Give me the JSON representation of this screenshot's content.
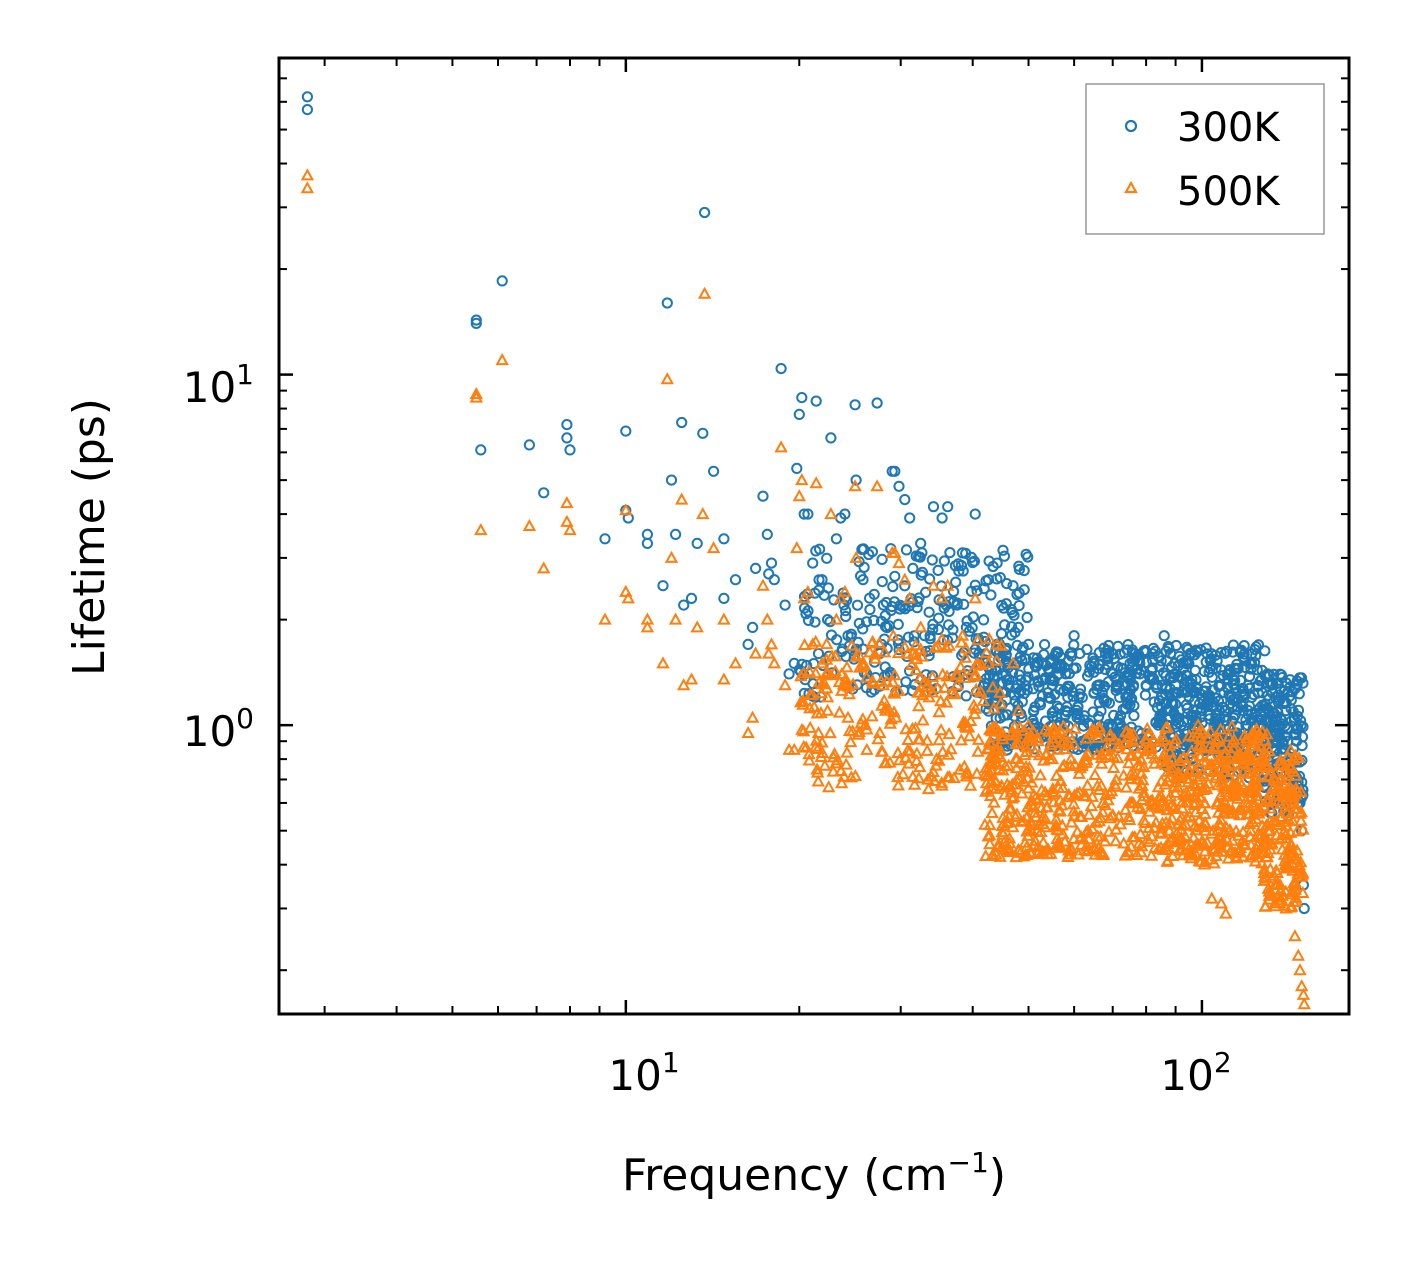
{
  "chart_data": {
    "type": "scatter",
    "title": "",
    "xlabel": "Frequency (cm",
    "xlabel_sup": "−1",
    "xlabel_close": ")",
    "ylabel": "Lifetime (ps)",
    "xscale": "log",
    "yscale": "log",
    "xlim": [
      2.5,
      180
    ],
    "ylim": [
      0.15,
      80
    ],
    "x_ticks": [
      {
        "base": "10",
        "exp": "1",
        "value": 10
      },
      {
        "base": "10",
        "exp": "2",
        "value": 100
      }
    ],
    "y_ticks": [
      {
        "base": "10",
        "exp": "0",
        "value": 1
      },
      {
        "base": "10",
        "exp": "1",
        "value": 10
      }
    ],
    "legend_position": "top-right",
    "series": [
      {
        "name": "300K",
        "marker": "circle",
        "color": "#1f77b4",
        "x": [
          2.8,
          2.8,
          5.5,
          5.5,
          5.6,
          6.1,
          6.8,
          7.2,
          7.9,
          7.9,
          8.0,
          9.2,
          10.0,
          10.0,
          10.1,
          10.9,
          10.9,
          11.6,
          11.8,
          12.0,
          12.2,
          12.5,
          12.6,
          13.0,
          13.3,
          13.6,
          13.7,
          14.2,
          14.8,
          14.8,
          15.5,
          16.3,
          16.6,
          16.8,
          17.3,
          17.6,
          17.7,
          17.9,
          18.1,
          18.6,
          18.9,
          19.2,
          19.6,
          19.8,
          20.0,
          20.2,
          20.4,
          20.7,
          21.1,
          21.4,
          21.6,
          21.9,
          22.4,
          22.7,
          23.2,
          23.6,
          24.0,
          24.3,
          25.0,
          25.1,
          25.8,
          26.2,
          27.3,
          27.6,
          28.0,
          29.0,
          29.3,
          29.8,
          30.5,
          31.1,
          31.5,
          32.5,
          33.6,
          34.2,
          35.4,
          36.2,
          37.6,
          38.4,
          40.4,
          42.6,
          44.1,
          47.0,
          48.0,
          50.0,
          52.0,
          55.0,
          56.0,
          58.0,
          60.0,
          62.0,
          65.0,
          66.0,
          68.0,
          70.0,
          72.0,
          75.0,
          78.0,
          80.0,
          82.0,
          85.0,
          86.0,
          88.0,
          90.0,
          92.0,
          95.0,
          98.0,
          100.0,
          103.0,
          105.0,
          108.0,
          110.0,
          112.0,
          115.0,
          118.0,
          120.0,
          122.0,
          125.0,
          128.0,
          130.0,
          132.0,
          134.0,
          136.0,
          138.0,
          140.0,
          142.0,
          144.0,
          146.0,
          148.0,
          33.0,
          36.0,
          39.0,
          41.0,
          45.0,
          58.0,
          64.0,
          72.0,
          84.0,
          96.0,
          106.0,
          118.0,
          128.0,
          135.0,
          141.0,
          145.0,
          147.0,
          149.0,
          150.0,
          150.5
        ],
        "y": [
          62.0,
          57.0,
          14.3,
          14.0,
          6.1,
          18.5,
          6.3,
          4.6,
          7.2,
          6.6,
          6.1,
          3.4,
          6.9,
          4.1,
          3.9,
          3.5,
          3.3,
          2.5,
          16.0,
          5.0,
          3.5,
          7.3,
          2.2,
          2.3,
          3.3,
          6.8,
          29.0,
          5.3,
          2.3,
          3.4,
          2.6,
          1.7,
          1.9,
          2.8,
          4.5,
          3.5,
          2.7,
          2.9,
          2.6,
          10.4,
          2.2,
          1.4,
          1.5,
          5.4,
          7.7,
          8.6,
          4.0,
          4.0,
          2.9,
          8.4,
          1.6,
          2.6,
          2.0,
          6.6,
          3.4,
          3.9,
          4.0,
          1.8,
          8.2,
          5.0,
          2.6,
          1.4,
          8.3,
          1.6,
          2.2,
          5.3,
          5.3,
          4.8,
          4.4,
          3.9,
          2.8,
          3.3,
          2.1,
          4.2,
          3.9,
          4.2,
          2.2,
          3.1,
          4.0,
          2.6,
          2.9,
          2.5,
          1.9,
          1.7,
          1.5,
          1.3,
          1.6,
          1.4,
          1.8,
          1.2,
          1.5,
          1.3,
          1.6,
          1.4,
          1.2,
          1.5,
          1.4,
          1.3,
          1.6,
          1.2,
          1.8,
          1.1,
          1.3,
          1.0,
          1.2,
          0.9,
          1.1,
          1.2,
          1.0,
          1.3,
          1.1,
          1.2,
          0.95,
          1.1,
          1.0,
          1.2,
          1.3,
          1.1,
          1.4,
          1.3,
          1.2,
          1.0,
          0.9,
          1.1,
          0.8,
          0.7,
          0.9,
          0.6,
          1.8,
          2.2,
          1.9,
          1.6,
          1.4,
          1.1,
          1.0,
          0.9,
          1.0,
          0.8,
          0.85,
          0.9,
          0.95,
          1.1,
          0.9,
          0.8,
          0.6,
          0.5,
          0.35,
          0.3
        ],
        "cloud": [
          {
            "from": 20,
            "to": 50,
            "lo": 1.2,
            "hi": 3.2,
            "n": 260,
            "seed": 11
          },
          {
            "from": 42,
            "to": 130,
            "lo": 0.85,
            "hi": 1.7,
            "n": 650,
            "seed": 23
          },
          {
            "from": 85,
            "to": 128,
            "lo": 0.7,
            "hi": 1.3,
            "n": 160,
            "seed": 31
          },
          {
            "from": 128,
            "to": 150,
            "lo": 0.55,
            "hi": 1.4,
            "n": 170,
            "seed": 41
          }
        ]
      },
      {
        "name": "500K",
        "marker": "triangle",
        "color": "#ff7f0e",
        "x": [
          2.8,
          2.8,
          5.5,
          5.5,
          5.6,
          6.1,
          6.8,
          7.2,
          7.9,
          7.9,
          8.0,
          9.2,
          10.0,
          10.0,
          10.1,
          10.9,
          10.9,
          11.6,
          11.8,
          12.0,
          12.2,
          12.5,
          12.6,
          13.0,
          13.3,
          13.6,
          13.7,
          14.2,
          14.8,
          14.8,
          15.5,
          16.3,
          16.6,
          16.8,
          17.3,
          17.6,
          17.7,
          17.9,
          18.1,
          18.6,
          18.9,
          19.2,
          19.6,
          19.8,
          20.0,
          20.2,
          20.4,
          20.7,
          21.1,
          21.4,
          21.6,
          21.9,
          22.4,
          22.7,
          23.2,
          23.6,
          24.0,
          24.3,
          25.0,
          25.1,
          25.8,
          26.2,
          27.3,
          27.6,
          28.0,
          29.0,
          29.3,
          29.8,
          30.5,
          31.1,
          31.5,
          32.5,
          33.6,
          34.2,
          35.4,
          36.2,
          37.6,
          38.4,
          40.4,
          42.6,
          44.1,
          47.0,
          48.0,
          50.0,
          52.0,
          55.0,
          104.0,
          108.0,
          110.0,
          45.0,
          60.0,
          75.0,
          92.0,
          120.0,
          140.0,
          145.0,
          147.0,
          148.0,
          149.0,
          150.0,
          150.5
        ],
        "y": [
          37.0,
          34.0,
          8.8,
          8.6,
          3.6,
          11.0,
          3.7,
          2.8,
          4.3,
          3.8,
          3.6,
          2.0,
          4.1,
          2.4,
          2.3,
          2.0,
          1.9,
          1.5,
          9.7,
          3.0,
          2.0,
          4.4,
          1.3,
          1.35,
          1.9,
          4.0,
          17.0,
          3.2,
          1.35,
          2.0,
          1.5,
          0.95,
          1.05,
          1.6,
          2.5,
          2.0,
          1.6,
          1.7,
          1.5,
          6.2,
          1.3,
          0.85,
          0.85,
          3.2,
          4.5,
          5.0,
          2.3,
          2.4,
          1.7,
          4.9,
          0.95,
          1.5,
          1.2,
          4.0,
          2.0,
          2.3,
          2.4,
          1.05,
          4.8,
          3.0,
          1.5,
          0.85,
          4.8,
          0.95,
          1.3,
          3.1,
          3.1,
          2.9,
          2.6,
          2.3,
          1.6,
          1.9,
          1.2,
          2.5,
          2.3,
          2.5,
          1.3,
          1.8,
          2.3,
          1.5,
          1.7,
          1.5,
          1.1,
          1.0,
          0.9,
          0.8,
          0.32,
          0.31,
          0.29,
          0.45,
          0.55,
          0.6,
          0.5,
          0.6,
          0.3,
          0.25,
          0.22,
          0.2,
          0.18,
          0.17,
          0.16
        ],
        "cloud": [
          {
            "from": 20,
            "to": 45,
            "lo": 0.65,
            "hi": 1.8,
            "n": 260,
            "seed": 53
          },
          {
            "from": 42,
            "to": 130,
            "lo": 0.42,
            "hi": 1.0,
            "n": 650,
            "seed": 67
          },
          {
            "from": 85,
            "to": 128,
            "lo": 0.4,
            "hi": 0.85,
            "n": 160,
            "seed": 71
          },
          {
            "from": 128,
            "to": 150,
            "lo": 0.3,
            "hi": 0.85,
            "n": 170,
            "seed": 83
          }
        ]
      }
    ]
  }
}
